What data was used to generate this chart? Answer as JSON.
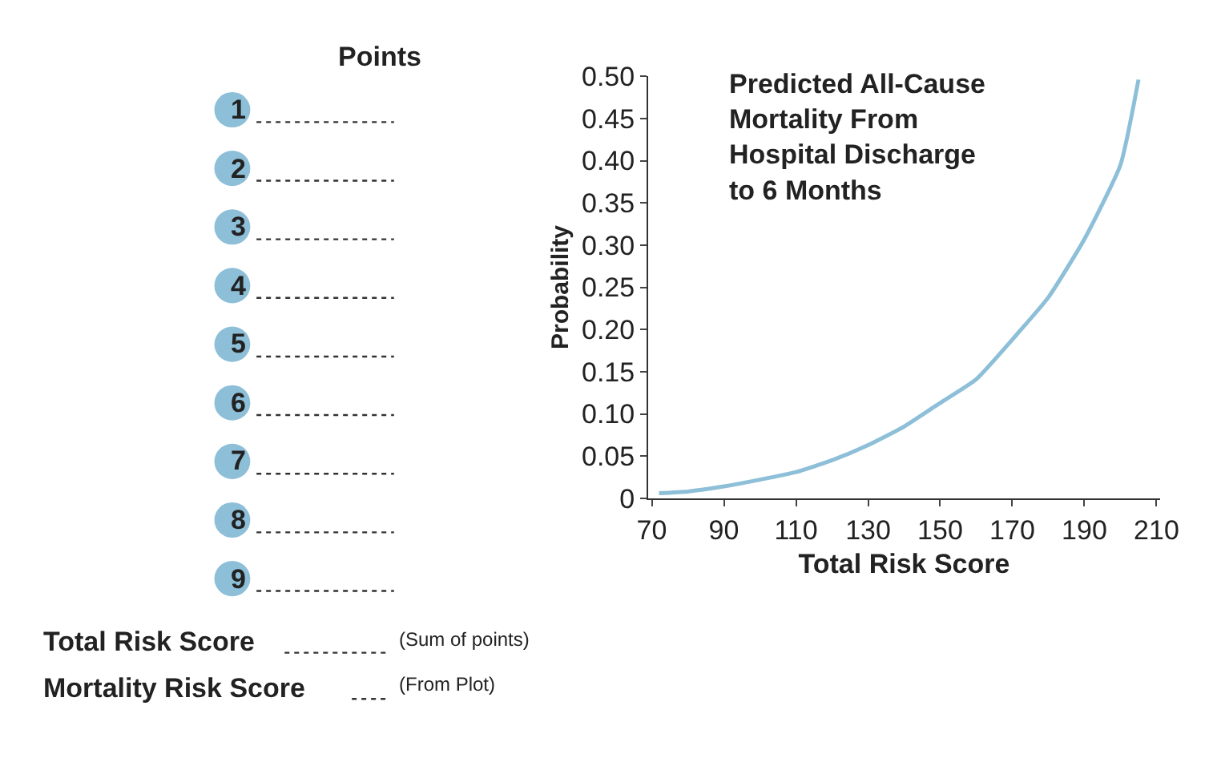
{
  "chart_data": {
    "type": "line",
    "title": "Predicted All-Cause Mortality From Hospital Discharge to 6 Months",
    "xlabel": "Total Risk Score",
    "ylabel": "Probability",
    "x": [
      72,
      80,
      90,
      100,
      110,
      120,
      130,
      140,
      150,
      160,
      170,
      180,
      190,
      200,
      205
    ],
    "series": [
      {
        "color": "#8dbfd8",
        "values": [
          0.006,
          0.008,
          0.014,
          0.022,
          0.031,
          0.045,
          0.063,
          0.085,
          0.113,
          0.141,
          0.188,
          0.238,
          0.307,
          0.395,
          0.496
        ]
      }
    ],
    "xlim": [
      69,
      211
    ],
    "xticks": [
      70,
      90,
      110,
      130,
      150,
      170,
      190,
      210
    ],
    "ylim": [
      0,
      0.5
    ],
    "yticks": [
      {
        "value": 0,
        "label": "0"
      },
      0.05,
      {
        "value": 0.1,
        "label": "0.10"
      },
      0.15,
      {
        "value": 0.2,
        "label": "0.20"
      },
      0.25,
      {
        "value": 0.3,
        "label": "0.30"
      },
      0.35,
      {
        "value": 0.4,
        "label": "0.40"
      },
      0.45,
      {
        "value": 0.5,
        "label": "0.50"
      }
    ],
    "marker": "none",
    "line_style": "solid",
    "annotations": [
      "Points",
      "1",
      "2",
      "3",
      "4",
      "5",
      "6",
      "7",
      "8",
      "9",
      "Total Risk Score",
      "(Sum of points)",
      "Mortality Risk Score",
      "(From Plot)"
    ]
  }
}
